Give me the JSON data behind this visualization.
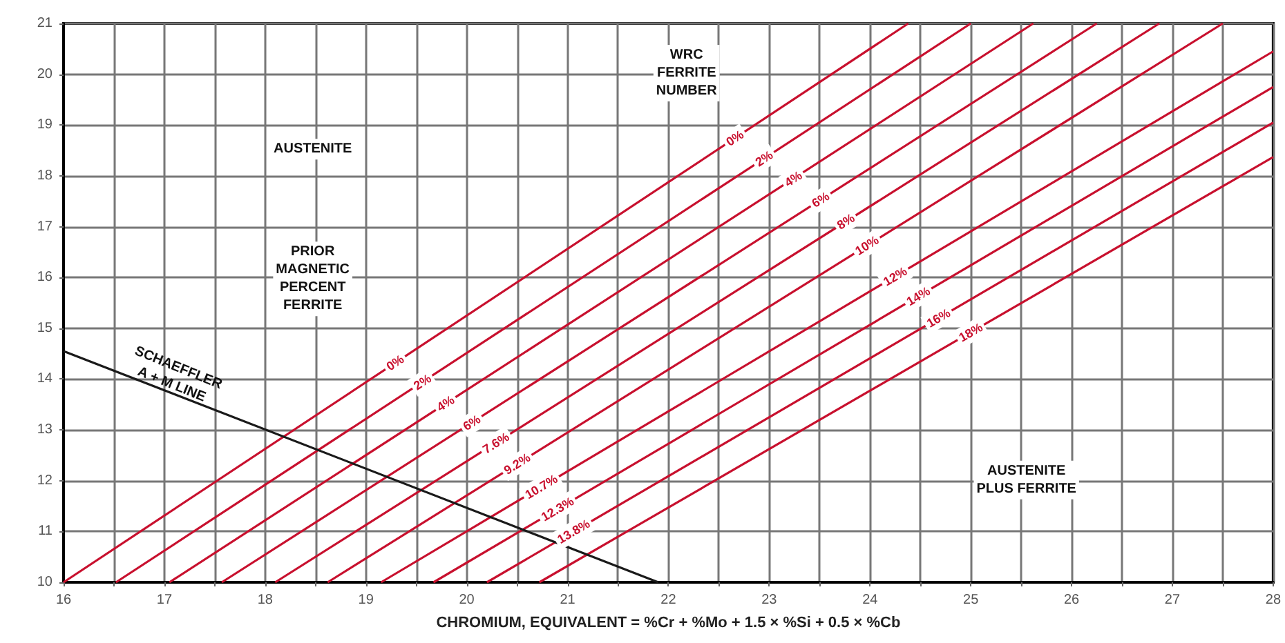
{
  "chart_data": {
    "type": "line",
    "xlabel": "CHROMIUM, EQUIVALENT = %Cr + %Mo + 1.5 × %Si + 0.5 × %Cb",
    "xlim": [
      16,
      28
    ],
    "ylim": [
      10,
      21
    ],
    "xticks": [
      16,
      {
        "value": 16.5,
        "label": null
      },
      17,
      {
        "value": 17.5,
        "label": null
      },
      18,
      {
        "value": 18.5,
        "label": null
      },
      19,
      {
        "value": 19.5,
        "label": null
      },
      20,
      {
        "value": 20.5,
        "label": null
      },
      21,
      {
        "value": 21.5,
        "label": null
      },
      22,
      {
        "value": 22.5,
        "label": null
      },
      23,
      {
        "value": 23.5,
        "label": null
      },
      24,
      {
        "value": 24.5,
        "label": null
      },
      25,
      {
        "value": 25.5,
        "label": null
      },
      26,
      {
        "value": 26.5,
        "label": null
      },
      27,
      {
        "value": 27.5,
        "label": null
      },
      28
    ],
    "yticks": [
      10,
      11,
      12,
      13,
      14,
      15,
      16,
      17,
      18,
      19,
      20,
      21
    ],
    "grid": true,
    "marker": "none",
    "line_style": "solid",
    "series": [
      {
        "color": "#c8102e",
        "x": [
          16,
          24.38
        ],
        "values": [
          10,
          21
        ]
      },
      {
        "color": "#c8102e",
        "x": [
          16.52,
          25.0
        ],
        "values": [
          10,
          21
        ]
      },
      {
        "color": "#c8102e",
        "x": [
          17.05,
          25.62
        ],
        "values": [
          10,
          21
        ]
      },
      {
        "color": "#c8102e",
        "x": [
          17.57,
          26.25
        ],
        "values": [
          10,
          21
        ]
      },
      {
        "color": "#c8102e",
        "x": [
          18.1,
          26.87
        ],
        "values": [
          10,
          21
        ]
      },
      {
        "color": "#c8102e",
        "x": [
          18.62,
          27.5
        ],
        "values": [
          10,
          21
        ]
      },
      {
        "color": "#c8102e",
        "x": [
          19.15,
          28
        ],
        "values": [
          10,
          20.45
        ]
      },
      {
        "color": "#c8102e",
        "x": [
          19.67,
          28
        ],
        "values": [
          10,
          19.75
        ]
      },
      {
        "color": "#c8102e",
        "x": [
          20.2,
          28
        ],
        "values": [
          10,
          19.05
        ]
      },
      {
        "color": "#c8102e",
        "x": [
          20.72,
          28
        ],
        "values": [
          10,
          18.37
        ]
      },
      {
        "color": "#1a1a1a",
        "x": [
          16,
          21.9
        ],
        "values": [
          14.55,
          10
        ]
      }
    ],
    "annotations": [
      "AUSTENITE",
      "PRIOR\nMAGNETIC\nPERCENT\nFERRITE",
      "WRC\nFERRITE\nNUMBER",
      "AUSTENITE\nPLUS FERRITE",
      "SCHAEFFLER\nA + M LINE",
      {
        "text": "0%",
        "x": 19.29,
        "y": 14.32
      },
      {
        "text": "2%",
        "x": 19.56,
        "y": 13.94
      },
      {
        "text": "4%",
        "x": 19.79,
        "y": 13.52
      },
      {
        "text": "6%",
        "x": 20.05,
        "y": 13.14
      },
      {
        "text": "7.6%",
        "x": 20.29,
        "y": 12.74
      },
      {
        "text": "9.2%",
        "x": 20.5,
        "y": 12.33
      },
      {
        "text": "10.7%",
        "x": 20.74,
        "y": 11.88
      },
      {
        "text": "12.3%",
        "x": 20.9,
        "y": 11.44
      },
      {
        "text": "13.8%",
        "x": 21.06,
        "y": 11.0
      },
      {
        "text": "0%",
        "x": 22.66,
        "y": 18.74
      },
      {
        "text": "2%",
        "x": 22.95,
        "y": 18.34
      },
      {
        "text": "4%",
        "x": 23.24,
        "y": 17.94
      },
      {
        "text": "6%",
        "x": 23.51,
        "y": 17.53
      },
      {
        "text": "8%",
        "x": 23.76,
        "y": 17.1
      },
      {
        "text": "10%",
        "x": 23.97,
        "y": 16.63
      },
      {
        "text": "12%",
        "x": 24.25,
        "y": 16.02
      },
      {
        "text": "14%",
        "x": 24.48,
        "y": 15.63
      },
      {
        "text": "16%",
        "x": 24.68,
        "y": 15.2
      },
      {
        "text": "18%",
        "x": 25.0,
        "y": 14.92
      }
    ]
  }
}
